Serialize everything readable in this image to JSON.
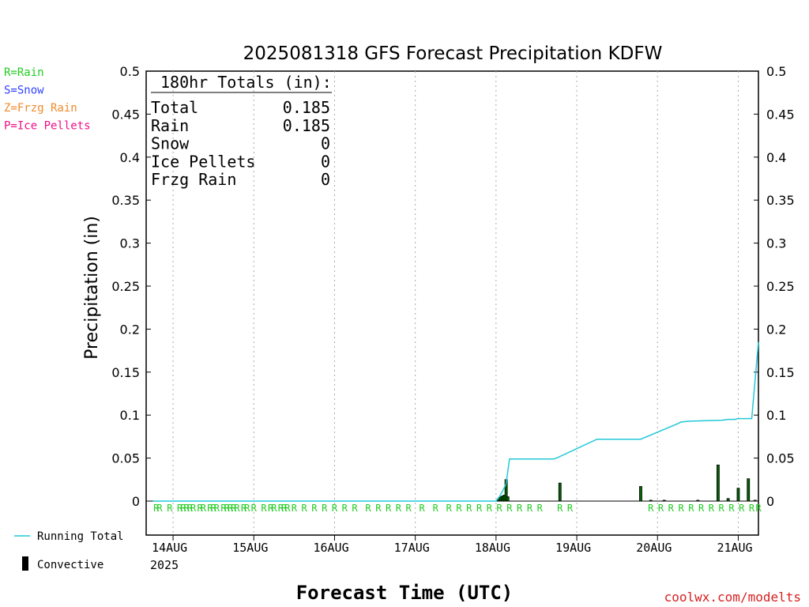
{
  "chart_data": {
    "type": "bar",
    "title": "2025081318 GFS Forecast Precipitation KDFW",
    "xlabel": "Forecast Time (UTC)",
    "ylabel": "Precipitation (in)",
    "ylim": [
      0,
      0.5
    ],
    "y_ticks": [
      "0",
      "0.05",
      "0.1",
      "0.15",
      "0.2",
      "0.25",
      "0.3",
      "0.35",
      "0.4",
      "0.45",
      "0.5"
    ],
    "x_range_hours": [
      -2,
      180
    ],
    "x_ticks": [
      {
        "hour": 6,
        "label": "14AUG"
      },
      {
        "hour": 30,
        "label": "15AUG"
      },
      {
        "hour": 54,
        "label": "16AUG"
      },
      {
        "hour": 78,
        "label": "17AUG"
      },
      {
        "hour": 102,
        "label": "18AUG"
      },
      {
        "hour": 126,
        "label": "19AUG"
      },
      {
        "hour": 150,
        "label": "20AUG"
      },
      {
        "hour": 174,
        "label": "21AUG"
      }
    ],
    "year_label": "2025",
    "grid": "dotted vertical",
    "series": [
      {
        "name": "Running Total",
        "color": "#22c8d8",
        "x": [
          0,
          102,
          103,
          104,
          105,
          106,
          119,
          120,
          132,
          133,
          134,
          135,
          136,
          145,
          156,
          157,
          160,
          160.5,
          169,
          171,
          172,
          173,
          174,
          177,
          178,
          180
        ],
        "values": [
          0,
          0,
          0.005,
          0.012,
          0.02,
          0.049,
          0.049,
          0.05,
          0.072,
          0.072,
          0.072,
          0.072,
          0.072,
          0.072,
          0.09,
          0.092,
          0.093,
          0.093,
          0.094,
          0.095,
          0.095,
          0.095,
          0.096,
          0.096,
          0.096,
          0.185
        ]
      },
      {
        "name": "Convective",
        "color": "#000000",
        "x": [
          102.5,
          103,
          103.5,
          104,
          104.5,
          105,
          105.5,
          121,
          145,
          148,
          152,
          162,
          168,
          171,
          174,
          177,
          179
        ],
        "values": [
          0.001,
          0.004,
          0.005,
          0.006,
          0.007,
          0.025,
          0.005,
          0.021,
          0.017,
          0.001,
          0.001,
          0.001,
          0.042,
          0.003,
          0.015,
          0.026,
          0.001
        ]
      }
    ],
    "precip_type_markers": {
      "letter": "R",
      "color": "#22cc22",
      "hours": [
        1,
        2,
        5,
        8,
        9,
        10,
        11,
        12,
        14,
        15,
        17,
        18,
        19,
        21,
        22,
        23,
        24,
        25,
        27,
        28,
        30,
        33,
        35,
        36,
        38,
        39,
        40,
        42,
        45,
        48,
        51,
        54,
        57,
        60,
        64,
        67,
        70,
        73,
        76,
        80,
        84,
        88,
        91,
        94,
        97,
        100,
        103,
        106,
        109,
        112,
        115,
        121,
        124,
        148,
        151,
        154,
        157,
        160,
        163,
        166,
        169,
        172,
        175,
        178,
        180
      ]
    },
    "totals_box": {
      "header": "180hr Totals (in):",
      "rows": [
        {
          "label": "Total",
          "value": "0.185"
        },
        {
          "label": "Rain",
          "value": "0.185"
        },
        {
          "label": "Snow",
          "value": "0"
        },
        {
          "label": "Ice Pellets",
          "value": "0"
        },
        {
          "label": "Frzg Rain",
          "value": "0"
        }
      ]
    },
    "type_legend": [
      {
        "text": "R=Rain",
        "color": "#22cc22"
      },
      {
        "text": "S=Snow",
        "color": "#3344ff"
      },
      {
        "text": "Z=Frzg Rain",
        "color": "#f08a2a"
      },
      {
        "text": "P=Ice Pellets",
        "color": "#ee1188"
      }
    ],
    "series_legend": [
      {
        "text": "Running Total",
        "color": "#22c8d8",
        "symbol": "line"
      },
      {
        "text": "Convective",
        "color": "#000000",
        "symbol": "bar"
      }
    ],
    "credit": {
      "text": "coolwx.com/modelts",
      "color": "#d82020"
    },
    "colors": {
      "rain": "#22cc22",
      "running_total": "#22c8d8",
      "bar_fill": "#006600",
      "bar_edge": "#000000"
    }
  }
}
